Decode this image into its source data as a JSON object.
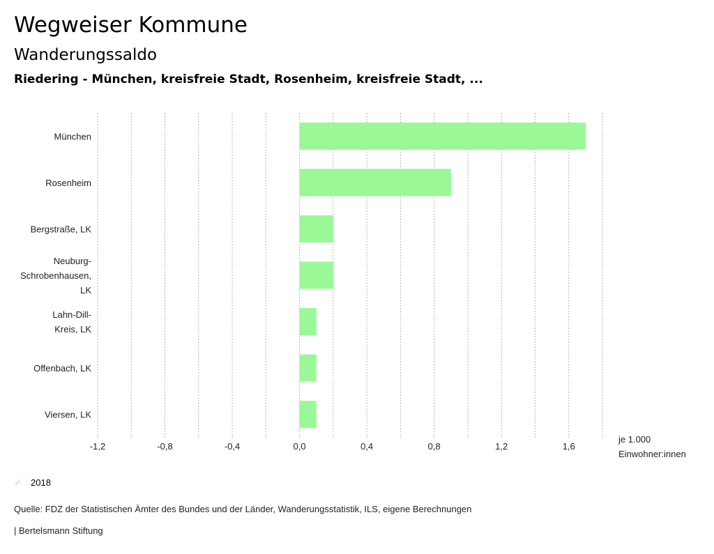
{
  "header": {
    "title": "Wegweiser Kommune",
    "subtitle": "Wanderungssaldo",
    "region": "Riedering - München, kreisfreie Stadt, Rosenheim, kreisfreie Stadt, ..."
  },
  "chart_data": {
    "type": "bar",
    "orientation": "horizontal",
    "categories": [
      [
        "München"
      ],
      [
        "Rosenheim"
      ],
      [
        "Bergstraße, LK"
      ],
      [
        "Neuburg-",
        "Schrobenhausen,",
        "LK"
      ],
      [
        "Lahn-Dill-",
        "Kreis, LK"
      ],
      [
        "Offenbach, LK"
      ],
      [
        "Viersen, LK"
      ]
    ],
    "series": [
      {
        "name": "2018",
        "color": "#9af996",
        "values": [
          1.7,
          0.9,
          0.2,
          0.2,
          0.1,
          0.1,
          0.1
        ]
      }
    ],
    "xlim": [
      -1.2,
      1.8
    ],
    "grid_values": [
      -1.2,
      -1.0,
      -0.8,
      -0.6,
      -0.4,
      -0.2,
      0.0,
      0.2,
      0.4,
      0.6,
      0.8,
      1.0,
      1.2,
      1.4,
      1.6,
      1.8
    ],
    "tick_values": [
      -1.2,
      -0.8,
      -0.4,
      0.0,
      0.4,
      0.8,
      1.2,
      1.6
    ],
    "tick_labels": [
      "-1,2",
      "-0,8",
      "-0,4",
      "0,0",
      "0,4",
      "0,8",
      "1,2",
      "1,6"
    ],
    "unit_label": [
      "je 1.000",
      "Einwohner:innen"
    ],
    "grid": true,
    "legend_position": "bottom-left"
  },
  "legend": {
    "items": [
      {
        "label": "2018",
        "icon": "check-icon",
        "color": "#9af996"
      }
    ]
  },
  "footer": {
    "source": "Quelle: FDZ der Statistischen Ämter des Bundes und der Länder, Wanderungsstatistik, ILS, eigene Berechnungen",
    "brand": "| Bertelsmann Stiftung"
  }
}
